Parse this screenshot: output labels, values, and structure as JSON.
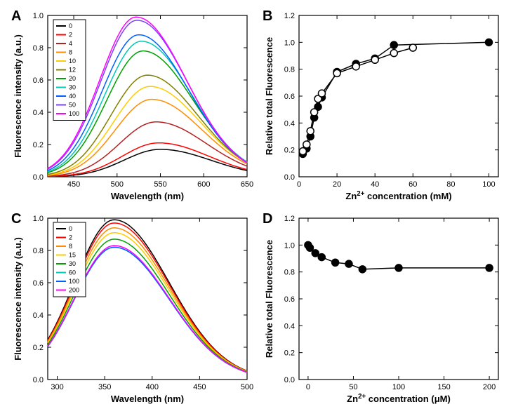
{
  "panelA": {
    "label": "A",
    "type": "line",
    "xlabel": "Wavelength (nm)",
    "ylabel": "Fluorescence intensity (a.u.)",
    "xlim": [
      420,
      650
    ],
    "ylim": [
      0,
      1.0
    ],
    "xticks": [
      450,
      500,
      550,
      600,
      650
    ],
    "yticks": [
      0.0,
      0.2,
      0.4,
      0.6,
      0.8,
      1.0
    ],
    "label_fontsize": 13,
    "tick_fontsize": 11,
    "background_color": "#ffffff",
    "line_width": 1.5,
    "series": [
      {
        "name": "0",
        "color": "#000000",
        "peak_x": 550,
        "peak_y": 0.17
      },
      {
        "name": "2",
        "color": "#ff0000",
        "peak_x": 548,
        "peak_y": 0.21
      },
      {
        "name": "4",
        "color": "#b22222",
        "peak_x": 545,
        "peak_y": 0.34
      },
      {
        "name": "8",
        "color": "#ff8c00",
        "peak_x": 540,
        "peak_y": 0.48
      },
      {
        "name": "10",
        "color": "#ffcc00",
        "peak_x": 538,
        "peak_y": 0.56
      },
      {
        "name": "12",
        "color": "#808000",
        "peak_x": 535,
        "peak_y": 0.63
      },
      {
        "name": "20",
        "color": "#00a000",
        "peak_x": 530,
        "peak_y": 0.78
      },
      {
        "name": "30",
        "color": "#00c8b4",
        "peak_x": 528,
        "peak_y": 0.84
      },
      {
        "name": "40",
        "color": "#0060ff",
        "peak_x": 525,
        "peak_y": 0.88
      },
      {
        "name": "50",
        "color": "#8040ff",
        "peak_x": 523,
        "peak_y": 0.97
      },
      {
        "name": "100",
        "color": "#ff00ff",
        "peak_x": 522,
        "peak_y": 0.99
      }
    ]
  },
  "panelB": {
    "label": "B",
    "type": "scatter-line",
    "xlabel": "Zn²⁺ concentration (mM)",
    "ylabel": "Relative total Fluorescence",
    "xlim": [
      0,
      105
    ],
    "ylim": [
      0,
      1.2
    ],
    "xticks": [
      0,
      20,
      40,
      60,
      80,
      100
    ],
    "yticks": [
      0.0,
      0.2,
      0.4,
      0.6,
      0.8,
      1.0,
      1.2
    ],
    "label_fontsize": 13,
    "tick_fontsize": 11,
    "background_color": "#ffffff",
    "marker_size": 5,
    "line_width": 1.5,
    "line_color": "#000000",
    "series1": {
      "marker": "filled-circle",
      "color": "#000000",
      "x": [
        2,
        4,
        6,
        8,
        10,
        12,
        20,
        30,
        40,
        50,
        100
      ],
      "y": [
        0.17,
        0.21,
        0.3,
        0.44,
        0.52,
        0.59,
        0.78,
        0.84,
        0.88,
        0.98,
        1.0
      ]
    },
    "series2": {
      "marker": "open-circle",
      "color": "#000000",
      "x": [
        2,
        4,
        6,
        8,
        10,
        12,
        20,
        30,
        40,
        50,
        60
      ],
      "y": [
        0.19,
        0.24,
        0.34,
        0.48,
        0.58,
        0.62,
        0.77,
        0.82,
        0.87,
        0.92,
        0.96
      ]
    }
  },
  "panelC": {
    "label": "C",
    "type": "line",
    "xlabel": "Wavelength (nm)",
    "ylabel": "Fluorescence intensity (a.u.)",
    "xlim": [
      290,
      500
    ],
    "ylim": [
      0,
      1.0
    ],
    "xticks": [
      300,
      350,
      400,
      450,
      500
    ],
    "yticks": [
      0.0,
      0.2,
      0.4,
      0.6,
      0.8,
      1.0
    ],
    "label_fontsize": 13,
    "tick_fontsize": 11,
    "background_color": "#ffffff",
    "line_width": 1.5,
    "series": [
      {
        "name": "0",
        "color": "#000000",
        "peak_x": 360,
        "peak_y": 0.99
      },
      {
        "name": "2",
        "color": "#ff0000",
        "peak_x": 360,
        "peak_y": 0.97
      },
      {
        "name": "8",
        "color": "#ff8c00",
        "peak_x": 360,
        "peak_y": 0.94
      },
      {
        "name": "15",
        "color": "#ffcc00",
        "peak_x": 360,
        "peak_y": 0.91
      },
      {
        "name": "30",
        "color": "#00a000",
        "peak_x": 360,
        "peak_y": 0.87
      },
      {
        "name": "60",
        "color": "#00c8b4",
        "peak_x": 360,
        "peak_y": 0.82
      },
      {
        "name": "100",
        "color": "#0060ff",
        "peak_x": 360,
        "peak_y": 0.82
      },
      {
        "name": "200",
        "color": "#ff00ff",
        "peak_x": 360,
        "peak_y": 0.83
      }
    ]
  },
  "panelD": {
    "label": "D",
    "type": "scatter-line",
    "xlabel": "Zn²⁺ concentration (μM)",
    "ylabel": "Relative total Fluorescence",
    "xlim": [
      -10,
      210
    ],
    "ylim": [
      0,
      1.2
    ],
    "xticks": [
      0,
      50,
      100,
      150,
      200
    ],
    "yticks": [
      0.0,
      0.2,
      0.4,
      0.6,
      0.8,
      1.0,
      1.2
    ],
    "label_fontsize": 13,
    "tick_fontsize": 11,
    "background_color": "#ffffff",
    "marker_size": 5,
    "line_width": 1.5,
    "line_color": "#000000",
    "series": {
      "marker": "filled-circle",
      "color": "#000000",
      "x": [
        0,
        2,
        8,
        15,
        30,
        45,
        60,
        100,
        200
      ],
      "y": [
        1.0,
        0.98,
        0.94,
        0.91,
        0.87,
        0.86,
        0.82,
        0.83,
        0.83
      ]
    }
  }
}
